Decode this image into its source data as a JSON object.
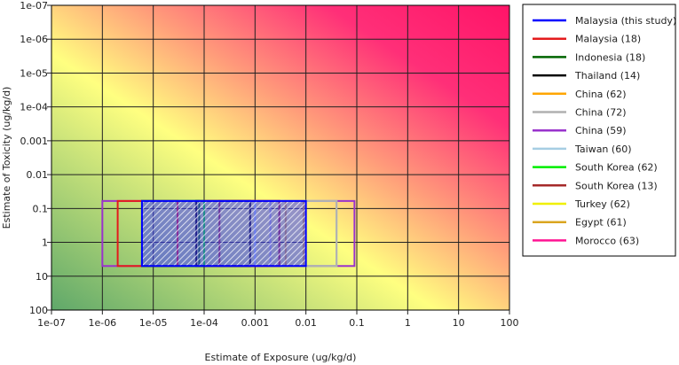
{
  "chart_data": {
    "type": "box-overlay",
    "title": "",
    "xlabel": "Estimate of Exposure (ug/kg/d)",
    "ylabel": "Estimate of Toxicity (ug/kg/d)",
    "x_scale": "log",
    "y_scale": "log",
    "y_inverted": true,
    "xlim": [
      1e-07,
      100
    ],
    "ylim": [
      1e-07,
      100
    ],
    "x_ticks": [
      "1e-07",
      "1e-06",
      "1e-05",
      "1e-04",
      "0.001",
      "0.01",
      "0.1",
      "1",
      "10",
      "100"
    ],
    "y_ticks": [
      "1e-07",
      "1e-06",
      "1e-05",
      "1e-04",
      "0.001",
      "0.01",
      "0.1",
      "1",
      "10",
      "100"
    ],
    "grid": true,
    "legend_position": "right",
    "background": "risk gradient: green (bottom-left) to yellow to pink (top-right)",
    "series": [
      {
        "name": "Malaysia (this study)",
        "color": "#0000ff",
        "x_range": [
          6e-06,
          0.01
        ],
        "y_range": [
          0.06,
          5
        ],
        "hatched": true
      },
      {
        "name": "Malaysia (18)",
        "color": "#e41a1c",
        "x_range": [
          2e-06,
          3e-05
        ],
        "y_range": [
          0.06,
          5
        ]
      },
      {
        "name": "Indonesia (18)",
        "color": "#006400",
        "x_range": [
          6e-06,
          8e-05
        ],
        "y_range": [
          0.06,
          5
        ]
      },
      {
        "name": "Thailand (14)",
        "color": "#000000",
        "x_range": [
          7e-05,
          0.0008
        ],
        "y_range": [
          0.06,
          5
        ]
      },
      {
        "name": "China (62)",
        "color": "#ffa500",
        "x_range": [
          0.0001,
          0.003
        ],
        "y_range": [
          0.06,
          5
        ]
      },
      {
        "name": "China (72)",
        "color": "#b0b0b0",
        "x_range": [
          0.002,
          0.04
        ],
        "y_range": [
          0.06,
          5
        ]
      },
      {
        "name": "China (59)",
        "color": "#9932cc",
        "x_range": [
          1e-06,
          0.09
        ],
        "y_range": [
          0.06,
          5
        ]
      },
      {
        "name": "Taiwan (60)",
        "color": "#a6cee3",
        "x_range": [
          0.001,
          0.04
        ],
        "y_range": [
          0.06,
          5
        ]
      },
      {
        "name": "South Korea (62)",
        "color": "#00ee00",
        "x_range": [
          6e-06,
          0.0001
        ],
        "y_range": [
          0.06,
          5
        ]
      },
      {
        "name": "South Korea (13)",
        "color": "#a52a2a",
        "x_range": [
          0.0002,
          0.003
        ],
        "y_range": [
          0.06,
          5
        ]
      },
      {
        "name": "Turkey (62)",
        "color": "#f0f000",
        "x_range": [
          0.0001,
          0.003
        ],
        "y_range": [
          0.06,
          5
        ]
      },
      {
        "name": "Egypt (61)",
        "color": "#daa520",
        "x_range": [
          0.004,
          0.009
        ],
        "y_range": [
          0.06,
          5
        ]
      },
      {
        "name": "Morocco (63)",
        "color": "#ff1493",
        "x_range": [
          0.0001,
          0.003
        ],
        "y_range": [
          0.06,
          5
        ]
      }
    ]
  }
}
